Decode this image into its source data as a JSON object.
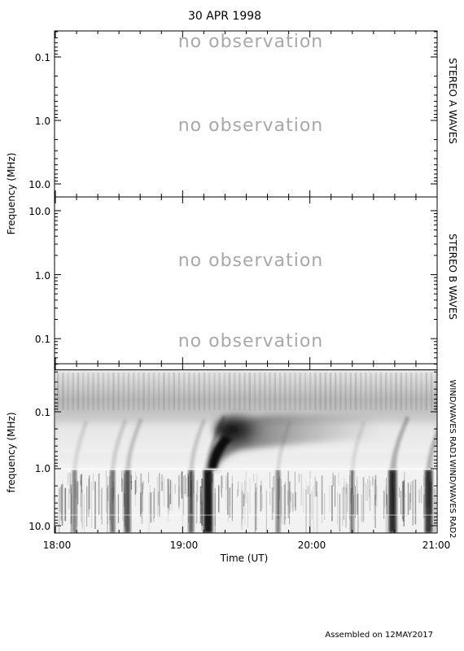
{
  "header": {
    "date": "30 APR 1998"
  },
  "footer": {
    "assembled": "Assembled on 12MAY2017"
  },
  "chart_data": [
    {
      "type": "heatmap",
      "panel": "STEREO A WAVES",
      "ylabel": "Frequency (MHz)",
      "y_scale": "log",
      "y_ticks": [
        "0.1",
        "1.0",
        "10.0"
      ],
      "status": [
        "no observation",
        "no observation"
      ]
    },
    {
      "type": "heatmap",
      "panel": "STEREO B WAVES",
      "y_scale": "log",
      "y_ticks": [
        "10.0",
        "1.0",
        "0.1"
      ],
      "status": [
        "no observation",
        "no observation"
      ]
    },
    {
      "type": "heatmap",
      "panel_labels": [
        "WIND/WAVES RAD1",
        "WIND/WAVES RAD2"
      ],
      "ylabel": "frequency (MHz)",
      "y_scale": "log",
      "y_ticks": [
        "0.1",
        "1.0",
        "10.0"
      ],
      "xlabel": "Time (UT)",
      "x_ticks": [
        "18:00",
        "19:00",
        "20:00",
        "21:00"
      ],
      "xlim": [
        "18:00",
        "21:00"
      ],
      "features": [
        {
          "kind": "type III burst",
          "time": "19:12",
          "intensity": 1.0
        },
        {
          "kind": "type III burst",
          "time": "18:34",
          "intensity": 0.6
        },
        {
          "kind": "type III burst",
          "time": "18:27",
          "intensity": 0.45
        },
        {
          "kind": "type III burst",
          "time": "18:09",
          "intensity": 0.35
        },
        {
          "kind": "type III burst",
          "time": "19:04",
          "intensity": 0.5
        },
        {
          "kind": "type III burst",
          "time": "19:45",
          "intensity": 0.35
        },
        {
          "kind": "type III burst",
          "time": "20:20",
          "intensity": 0.3
        },
        {
          "kind": "type III burst",
          "time": "20:39",
          "intensity": 0.85
        },
        {
          "kind": "type III burst",
          "time": "20:56",
          "intensity": 0.8
        }
      ]
    }
  ]
}
